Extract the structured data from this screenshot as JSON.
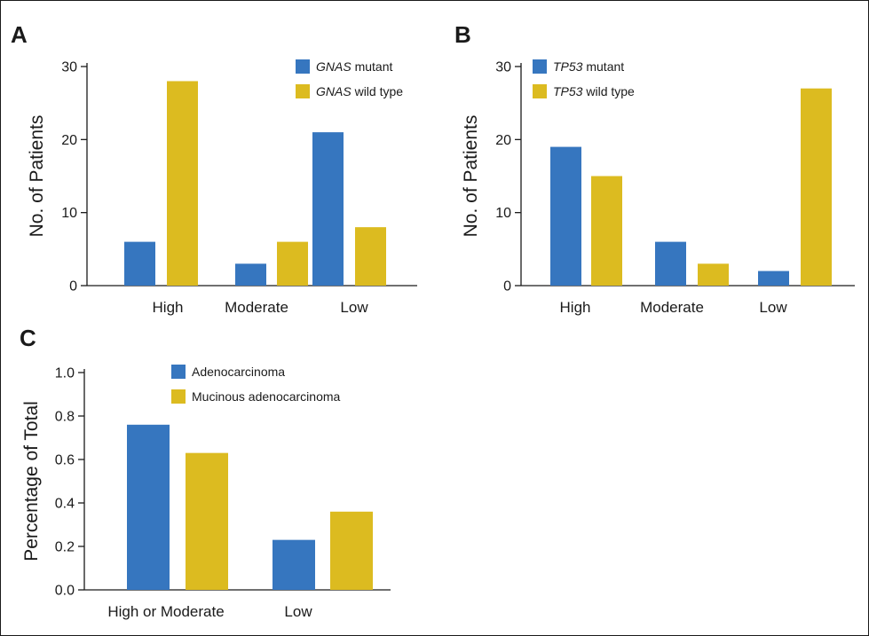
{
  "colors": {
    "series1": "#3676bf",
    "series2": "#dcbb20"
  },
  "chart_data": [
    {
      "panel": "A",
      "type": "bar",
      "categories": [
        "High",
        "Moderate",
        "Low"
      ],
      "series": [
        {
          "name_italic": "GNAS",
          "name_rest": " mutant",
          "values": [
            6,
            3,
            21
          ]
        },
        {
          "name_italic": "GNAS",
          "name_rest": " wild type",
          "values": [
            28,
            6,
            8
          ]
        }
      ],
      "ylabel": "No. of Patients",
      "ylim": [
        0,
        30
      ],
      "yticks": [
        "0",
        "10",
        "20",
        "30"
      ],
      "legend": "top-right"
    },
    {
      "panel": "B",
      "type": "bar",
      "categories": [
        "High",
        "Moderate",
        "Low"
      ],
      "series": [
        {
          "name_italic": "TP53",
          "name_rest": " mutant",
          "values": [
            19,
            6,
            2
          ]
        },
        {
          "name_italic": "TP53",
          "name_rest": " wild type",
          "values": [
            15,
            3,
            27
          ]
        }
      ],
      "ylabel": "No. of Patients",
      "ylim": [
        0,
        30
      ],
      "yticks": [
        "0",
        "10",
        "20",
        "30"
      ],
      "legend": "top-left"
    },
    {
      "panel": "C",
      "type": "bar",
      "categories": [
        "High or Moderate",
        "Low"
      ],
      "series": [
        {
          "name_italic": "",
          "name_rest": "Adenocarcinoma",
          "values": [
            0.76,
            0.23
          ]
        },
        {
          "name_italic": "",
          "name_rest": "Mucinous adenocarcinoma",
          "values": [
            0.63,
            0.36
          ]
        }
      ],
      "ylabel": "Percentage of Total",
      "ylim": [
        0,
        1
      ],
      "yticks": [
        "0.0",
        "0.2",
        "0.4",
        "0.6",
        "0.8",
        "1.0"
      ],
      "legend": "top"
    }
  ]
}
